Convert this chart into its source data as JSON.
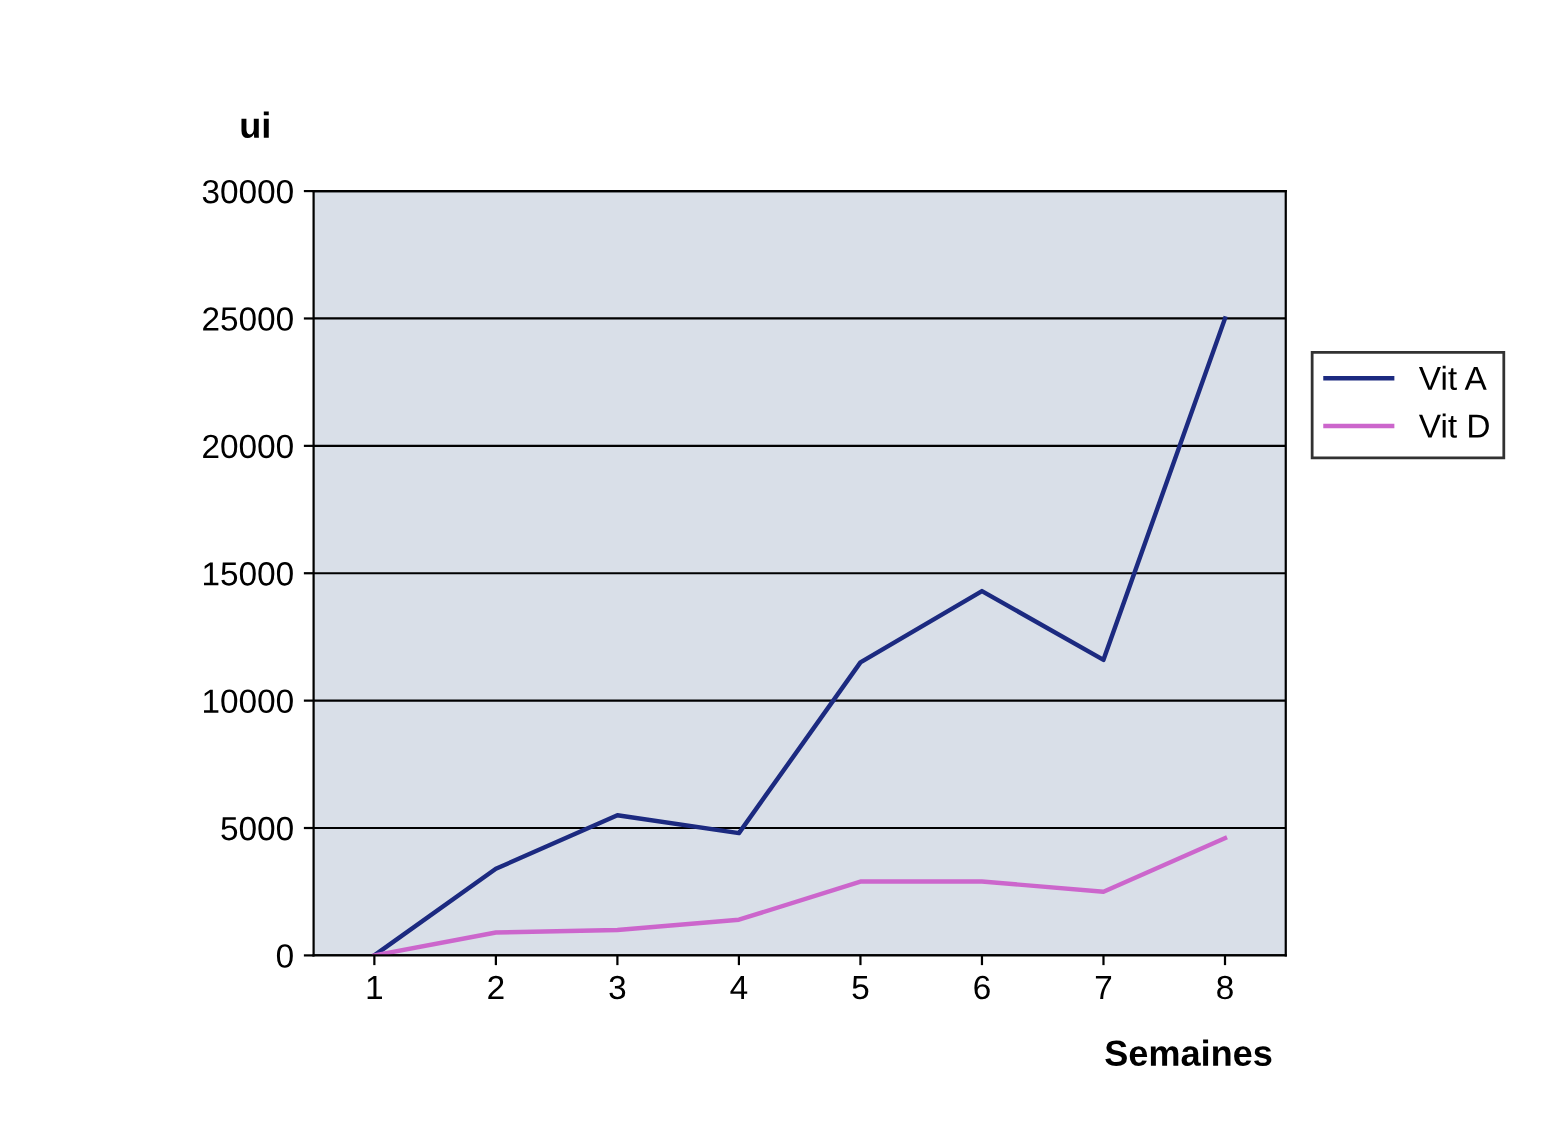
{
  "chart_data": {
    "type": "line",
    "ylabel": "ui",
    "xlabel": "Semaines",
    "categories": [
      "1",
      "2",
      "3",
      "4",
      "5",
      "6",
      "7",
      "8"
    ],
    "series": [
      {
        "name": "Vit A",
        "color": "#1c2a80",
        "values": [
          0,
          3400,
          5500,
          4800,
          11500,
          14300,
          11600,
          25000
        ]
      },
      {
        "name": "Vit D",
        "color": "#cc66cc",
        "values": [
          0,
          900,
          1000,
          1400,
          2900,
          2900,
          2500,
          4600
        ]
      }
    ],
    "ylim": [
      0,
      30000
    ],
    "yticks": [
      0,
      5000,
      10000,
      15000,
      20000,
      25000,
      30000
    ],
    "grid": "y",
    "legend": "right",
    "marker": "none",
    "line_style": "solid"
  }
}
